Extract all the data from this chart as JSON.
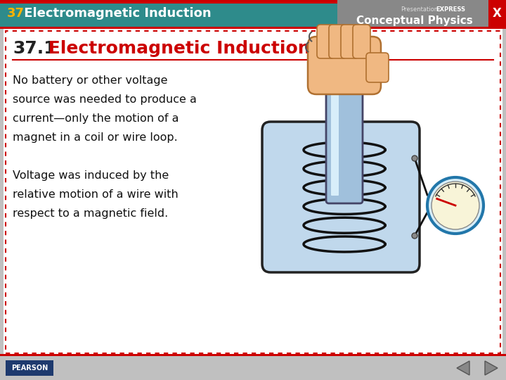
{
  "header_bg_color": "#2E8B8B",
  "header_text_number": "37",
  "header_text_title": " Electromagnetic Induction",
  "header_number_color": "#FFB300",
  "header_title_color": "#FFFFFF",
  "top_bar_color": "#CC0000",
  "slide_bg_color": "#FFFFFF",
  "outer_bg_color": "#C0C0C0",
  "section_number": "37.1",
  "section_title": " Electromagnetic Induction",
  "section_number_color": "#222222",
  "section_title_color": "#CC0000",
  "body_text_line1": "No battery or other voltage",
  "body_text_line2": "source was needed to produce a",
  "body_text_line3": "current—only the motion of a",
  "body_text_line4": "magnet in a coil or wire loop.",
  "body_text_line5": "Voltage was induced by the",
  "body_text_line6": "relative motion of a wire with",
  "body_text_line7": "respect to a magnetic field.",
  "body_text_color": "#111111",
  "dashed_border_color": "#CC0000",
  "pearson_bg": "#1E3A6E",
  "pearson_text": "PEARSON",
  "pearson_text_color": "#FFFFFF",
  "close_btn_color": "#CC0000"
}
